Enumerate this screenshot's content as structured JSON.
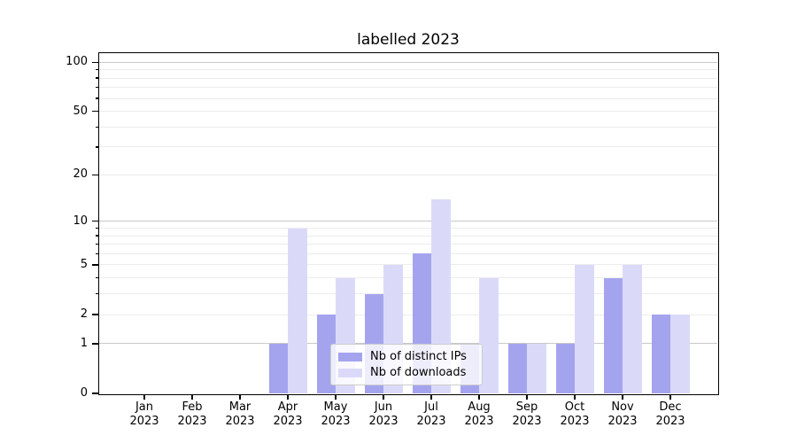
{
  "chart_data": {
    "type": "bar",
    "title": "labelled 2023",
    "categories": [
      "Jan 2023",
      "Feb 2023",
      "Mar 2023",
      "Apr 2023",
      "May 2023",
      "Jun 2023",
      "Jul 2023",
      "Aug 2023",
      "Sep 2023",
      "Oct 2023",
      "Nov 2023",
      "Dec 2023"
    ],
    "series": [
      {
        "name": "Nb of distinct IPs",
        "color": "#a4a4ee",
        "values": [
          0,
          0,
          0,
          1,
          2,
          3,
          6,
          1,
          1,
          1,
          4,
          2
        ]
      },
      {
        "name": "Nb of downloads",
        "color": "#dadaf8",
        "values": [
          0,
          0,
          0,
          9,
          4,
          5,
          14,
          4,
          1,
          5,
          5,
          2
        ]
      }
    ],
    "xlabel": "",
    "ylabel": "",
    "yscale": "log1p",
    "ylim": [
      0,
      115
    ],
    "y_ticks": [
      0,
      1,
      2,
      5,
      10,
      20,
      50,
      100
    ],
    "y_major_gridlines": [
      1,
      10,
      100
    ],
    "y_minor_gridlines": [
      2,
      3,
      4,
      5,
      6,
      7,
      8,
      9,
      20,
      30,
      40,
      50,
      60,
      70,
      80,
      90
    ],
    "grid": true,
    "grid_major_color": "#c8c8c8",
    "grid_minor_color": "#ececec",
    "legend_position": "lower center inside plot"
  }
}
